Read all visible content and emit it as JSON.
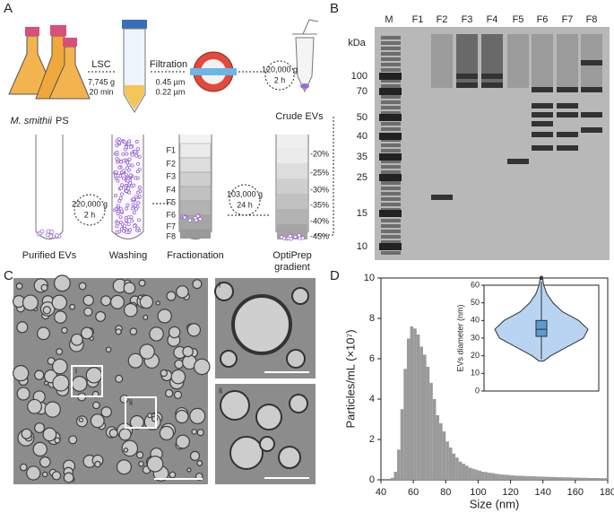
{
  "panel_labels": [
    "A",
    "B",
    "C",
    "D"
  ],
  "panel_a": {
    "lsc": {
      "label": "LSC",
      "force": "7,745 g",
      "time": "20 min"
    },
    "filtration": {
      "label": "Filtration",
      "pore1": "0.45 µm",
      "pore2": "0.22 µm"
    },
    "spin1": {
      "force": "120,000 g",
      "time": "2 h"
    },
    "culture": {
      "species": "M. smithii",
      "suffix": "PS"
    },
    "crude": "Crude EVs",
    "gradient_spin": {
      "force": "103,000 g",
      "time": "24 h"
    },
    "wash_spin": {
      "force": "220,000 g",
      "time": "2 h"
    },
    "fractions": [
      "F1",
      "F2",
      "F3",
      "F4",
      "F5",
      "F6",
      "F7",
      "F8"
    ],
    "percentages": [
      "-20%",
      "-25%",
      "-30%",
      "-35%",
      "-40%",
      "-45%"
    ],
    "steps": [
      "Purified EVs",
      "Washing",
      "Fractionation",
      "OptiPrep",
      "gradient"
    ]
  },
  "panel_b": {
    "lanes": [
      "M",
      "F1",
      "F2",
      "F3",
      "F4",
      "F5",
      "F6",
      "F7",
      "F8"
    ],
    "unit": "kDa",
    "markers": [
      100,
      70,
      50,
      40,
      35,
      25,
      15,
      10
    ]
  },
  "panel_c": {
    "insets": [
      "i",
      "ii"
    ]
  },
  "chart_data": [
    {
      "type": "histogram",
      "xlabel": "Size (nm)",
      "ylabel": "Particles/mL (×10⁷)",
      "color": "#9a9a9a",
      "bins": [
        44,
        46,
        48,
        50,
        52,
        54,
        56,
        58,
        60,
        62,
        64,
        66,
        68,
        70,
        72,
        74,
        76,
        78,
        80,
        82,
        84,
        86,
        88,
        90,
        92,
        94,
        96,
        98,
        100,
        102,
        104,
        106,
        108,
        110,
        112,
        114,
        116,
        118,
        120,
        122,
        124,
        126,
        128,
        130,
        132,
        134,
        136,
        138,
        140,
        142,
        144,
        146,
        148,
        150,
        152,
        154,
        156,
        158,
        160,
        162,
        164,
        166,
        168,
        170,
        172,
        174,
        176,
        178,
        180
      ],
      "values": [
        0,
        0.1,
        0.4,
        1.5,
        3.5,
        5.5,
        7,
        7.6,
        7.5,
        7.2,
        6.6,
        6.2,
        5.6,
        4.8,
        4.0,
        3.2,
        2.8,
        2.4,
        1.9,
        1.6,
        1.3,
        1.1,
        0.9,
        0.8,
        0.7,
        0.6,
        0.55,
        0.5,
        0.45,
        0.4,
        0.38,
        0.35,
        0.33,
        0.3,
        0.28,
        0.26,
        0.25,
        0.24,
        0.22,
        0.21,
        0.2,
        0.2,
        0.19,
        0.18,
        0.18,
        0.17,
        0.16,
        0.16,
        0.15,
        0.15,
        0.14,
        0.14,
        0.13,
        0.13,
        0.12,
        0.12,
        0.12,
        0.11,
        0.11,
        0.1,
        0.1,
        0.1,
        0.09,
        0.09,
        0.09,
        0.08,
        0.08,
        0.08
      ],
      "xlim": [
        40,
        180
      ],
      "xticks": [
        40,
        60,
        80,
        100,
        120,
        140,
        160,
        180
      ],
      "ylim": [
        0,
        10
      ],
      "yticks": [
        0,
        2,
        4,
        6,
        8,
        10
      ]
    },
    {
      "type": "violin",
      "ylabel": "EVs diameter (nm)",
      "color": "#b9d3f2",
      "box_color": "#5b9bd5",
      "ylim": [
        0,
        60
      ],
      "yticks": [
        0,
        10,
        20,
        30,
        40,
        50,
        60
      ],
      "density": {
        "y": [
          17,
          20,
          25,
          30,
          35,
          40,
          45,
          50,
          55,
          60,
          65
        ],
        "width": [
          0.05,
          0.2,
          0.55,
          0.9,
          1,
          0.8,
          0.45,
          0.25,
          0.12,
          0.05,
          0.02
        ]
      },
      "box": {
        "min": 18,
        "q1": 31,
        "median": 35,
        "q3": 40,
        "max": 62
      },
      "outliers": [
        64
      ]
    }
  ]
}
